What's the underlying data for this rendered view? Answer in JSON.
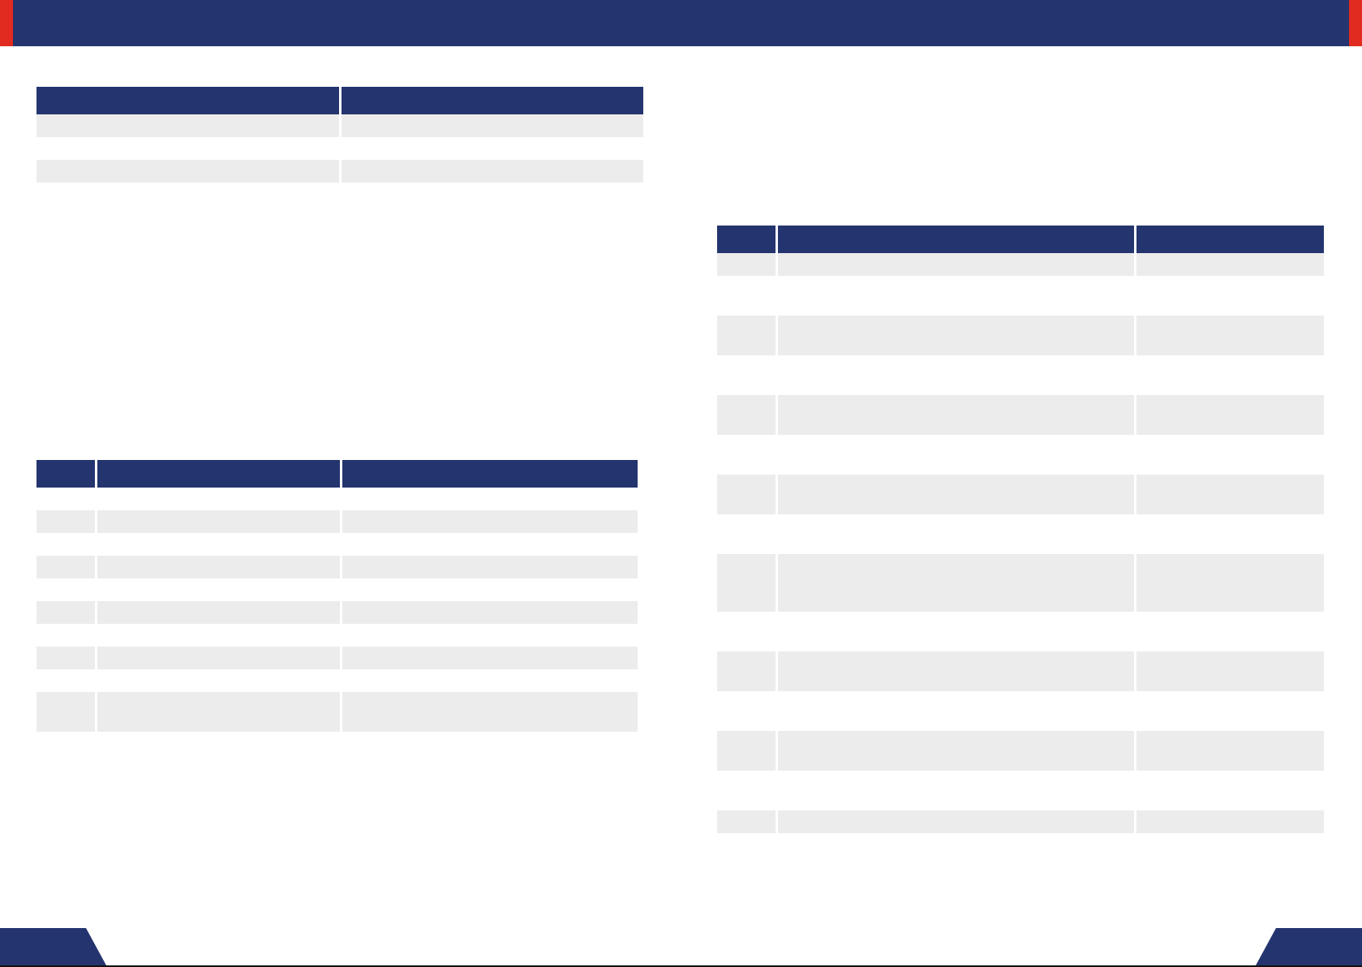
{
  "colors": {
    "brand_navy": "#24346e",
    "accent_red": "#e12b21",
    "row_shade": "#ececec"
  }
}
